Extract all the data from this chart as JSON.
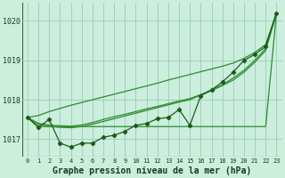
{
  "x": [
    0,
    1,
    2,
    3,
    4,
    5,
    6,
    7,
    8,
    9,
    10,
    11,
    12,
    13,
    14,
    15,
    16,
    17,
    18,
    19,
    20,
    21,
    22,
    23
  ],
  "series_main": [
    1017.55,
    1017.3,
    1017.5,
    1016.9,
    1016.8,
    1016.9,
    1016.9,
    1017.05,
    1017.1,
    1017.2,
    1017.35,
    1017.4,
    1017.52,
    1017.55,
    1017.75,
    1017.35,
    1018.1,
    1018.25,
    1018.45,
    1018.7,
    1019.0,
    1019.15,
    1019.35,
    1020.2
  ],
  "series_flat": [
    1017.55,
    1017.32,
    1017.32,
    1017.32,
    1017.32,
    1017.32,
    1017.32,
    1017.32,
    1017.32,
    1017.32,
    1017.32,
    1017.32,
    1017.32,
    1017.32,
    1017.32,
    1017.32,
    1017.32,
    1017.32,
    1017.32,
    1017.32,
    1017.32,
    1017.32,
    1017.32,
    1020.2
  ],
  "series_diagonal": [
    1017.55,
    1017.6,
    1017.7,
    1017.78,
    1017.86,
    1017.93,
    1018.0,
    1018.07,
    1018.14,
    1018.21,
    1018.28,
    1018.35,
    1018.42,
    1018.5,
    1018.57,
    1018.64,
    1018.71,
    1018.78,
    1018.85,
    1018.93,
    1019.05,
    1019.2,
    1019.4,
    1020.2
  ],
  "series_linear1": [
    1017.55,
    1017.4,
    1017.36,
    1017.34,
    1017.33,
    1017.36,
    1017.42,
    1017.5,
    1017.57,
    1017.63,
    1017.7,
    1017.77,
    1017.83,
    1017.9,
    1017.97,
    1018.03,
    1018.13,
    1018.25,
    1018.38,
    1018.55,
    1018.75,
    1019.0,
    1019.3,
    1020.2
  ],
  "series_linear2": [
    1017.55,
    1017.38,
    1017.32,
    1017.3,
    1017.29,
    1017.32,
    1017.38,
    1017.45,
    1017.52,
    1017.59,
    1017.66,
    1017.73,
    1017.8,
    1017.87,
    1017.94,
    1018.0,
    1018.12,
    1018.23,
    1018.36,
    1018.5,
    1018.7,
    1018.95,
    1019.25,
    1020.2
  ],
  "bg_color": "#cceedd",
  "grid_color": "#99ccbb",
  "line_color_dark": "#1a5c1a",
  "line_color_mid": "#2d8b2d",
  "xlabel": "Graphe pression niveau de la mer (hPa)",
  "ylim": [
    1016.55,
    1020.45
  ],
  "xlim": [
    -0.5,
    23.5
  ],
  "yticks": [
    1017,
    1018,
    1019,
    1020
  ],
  "xticks": [
    0,
    1,
    2,
    3,
    4,
    5,
    6,
    7,
    8,
    9,
    10,
    11,
    12,
    13,
    14,
    15,
    16,
    17,
    18,
    19,
    20,
    21,
    22,
    23
  ]
}
